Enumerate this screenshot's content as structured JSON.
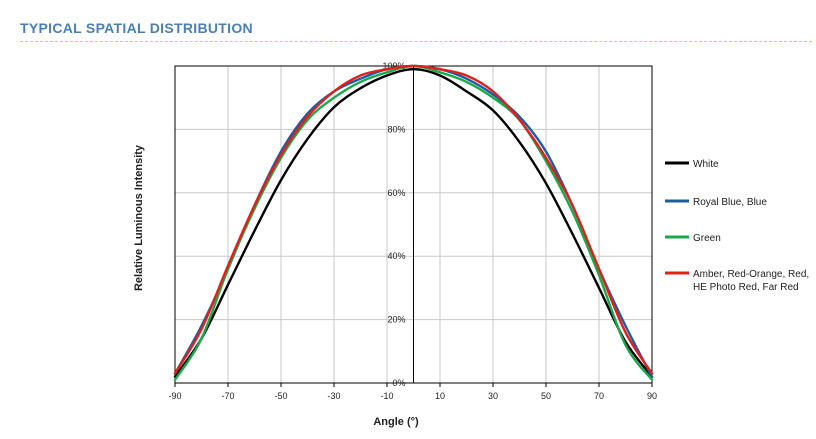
{
  "page": {
    "section_title": "TYPICAL SPATIAL DISTRIBUTION"
  },
  "chart_data": {
    "type": "line",
    "title": "",
    "xlabel": "Angle (°)",
    "ylabel": "Relative Luminous Intensity",
    "xlim": [
      -90,
      90
    ],
    "ylim": [
      0,
      100
    ],
    "x_tick_labels": [
      "-90",
      "-70",
      "-50",
      "-30",
      "-10",
      "10",
      "30",
      "50",
      "70",
      "90"
    ],
    "x_tick_values": [
      -90,
      -70,
      -50,
      -30,
      -10,
      10,
      30,
      50,
      70,
      90
    ],
    "y_tick_labels": [
      "0%",
      "20%",
      "40%",
      "60%",
      "80%",
      "100%"
    ],
    "y_tick_values": [
      0,
      20,
      40,
      60,
      80,
      100
    ],
    "grid": true,
    "legend_placement": "right",
    "x": [
      -90,
      -80,
      -70,
      -60,
      -50,
      -40,
      -30,
      -20,
      -10,
      0,
      10,
      20,
      30,
      40,
      50,
      60,
      70,
      80,
      90
    ],
    "series": [
      {
        "name": "White",
        "color": "#000000",
        "values": [
          2,
          14,
          31,
          48,
          64,
          77,
          87,
          93,
          97,
          99,
          97,
          92,
          86,
          76,
          63,
          47,
          30,
          13,
          2
        ]
      },
      {
        "name": "Royal Blue, Blue",
        "color": "#1f5aa6",
        "values": [
          3,
          18,
          36,
          56,
          73,
          85,
          92,
          96,
          99,
          100,
          99,
          96,
          91,
          84,
          73,
          56,
          36,
          18,
          2
        ]
      },
      {
        "name": "Green",
        "color": "#1aa84a",
        "values": [
          1,
          14,
          36,
          55,
          71,
          83,
          90,
          95,
          98,
          100,
          98,
          95,
          90,
          83,
          70,
          54,
          34,
          12,
          1
        ]
      },
      {
        "name": "Amber, Red-Orange, Red, HE Photo Red, Far Red",
        "color": "#e0201b",
        "legend_lines": [
          "Amber, Red-Orange, Red,",
          "HE Photo Red, Far Red"
        ],
        "values": [
          3,
          17,
          37,
          56,
          72,
          84,
          92,
          97,
          99,
          100,
          99,
          97,
          92,
          83,
          71,
          56,
          36,
          16,
          3
        ]
      }
    ]
  }
}
